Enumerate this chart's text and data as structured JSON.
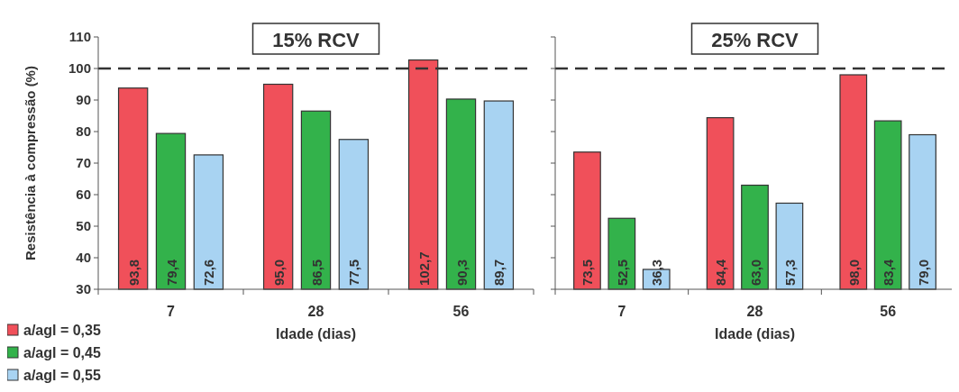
{
  "chart_data": [
    {
      "type": "bar",
      "title": "15% RCV",
      "xlabel": "Idade (dias)",
      "ylabel": "Resistência à compressão (%)",
      "categories": [
        "7",
        "28",
        "56"
      ],
      "series": [
        {
          "name": "a/agl = 0,35",
          "color": "#f0505a",
          "values": [
            93.8,
            95.0,
            102.7
          ],
          "value_labels": [
            "93,8",
            "95,0",
            "102,7"
          ]
        },
        {
          "name": "a/agl = 0,45",
          "color": "#33b24b",
          "values": [
            79.4,
            86.5,
            90.3
          ],
          "value_labels": [
            "79,4",
            "86,5",
            "90,3"
          ]
        },
        {
          "name": "a/agl = 0,55",
          "color": "#a8d3f2",
          "values": [
            72.6,
            77.5,
            89.7
          ],
          "value_labels": [
            "72,6",
            "77,5",
            "89,7"
          ]
        }
      ],
      "ylim": [
        30,
        110
      ],
      "yticks": [
        30,
        40,
        50,
        60,
        70,
        80,
        90,
        100,
        110
      ],
      "grid": false,
      "legend": "bottom left",
      "ref_lines": [
        {
          "axis": "y",
          "value": 100,
          "line_style": "dashed"
        }
      ]
    },
    {
      "type": "bar",
      "title": "25% RCV",
      "xlabel": "Idade (dias)",
      "categories": [
        "7",
        "28",
        "56"
      ],
      "series": [
        {
          "color": "#f0505a",
          "values": [
            73.5,
            84.4,
            98.0
          ],
          "value_labels": [
            "73,5",
            "84,4",
            "98,0"
          ]
        },
        {
          "color": "#33b24b",
          "values": [
            52.5,
            63.0,
            83.4
          ],
          "value_labels": [
            "52,5",
            "63,0",
            "83,4"
          ]
        },
        {
          "color": "#a8d3f2",
          "values": [
            36.3,
            57.3,
            79.0
          ],
          "value_labels": [
            "36,3",
            "57,3",
            "79,0"
          ]
        }
      ],
      "ylim": [
        30,
        110
      ],
      "yticks": [
        30,
        40,
        50,
        60,
        70,
        80,
        90,
        100,
        110
      ],
      "tick_labels": "x",
      "grid": false,
      "ref_lines": [
        {
          "axis": "y",
          "value": 100,
          "line_style": "dashed"
        }
      ]
    }
  ]
}
